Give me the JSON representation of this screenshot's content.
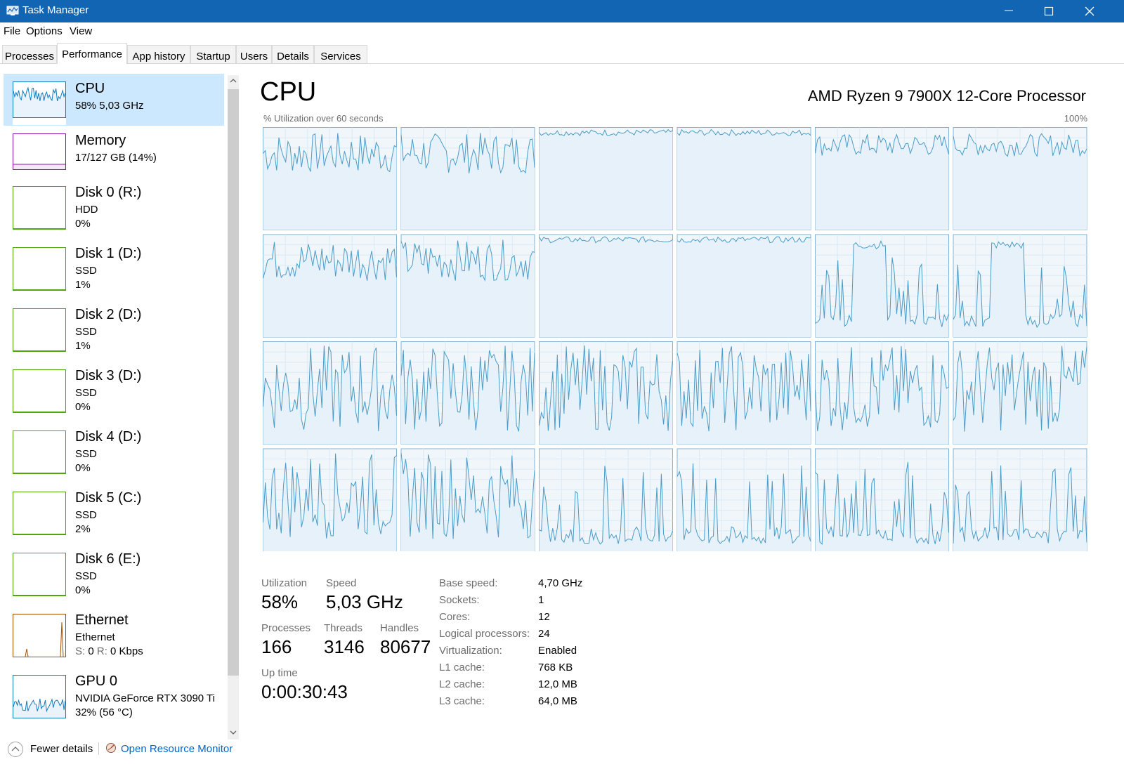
{
  "window": {
    "title": "Task Manager"
  },
  "menu": [
    "File",
    "Options",
    "View"
  ],
  "tabs": [
    "Processes",
    "Performance",
    "App history",
    "Startup",
    "Users",
    "Details",
    "Services"
  ],
  "sidebar": [
    {
      "name": "CPU",
      "l2": "58%  5,03 GHz",
      "l3": "",
      "color": "#117dbb",
      "selected": true
    },
    {
      "name": "Memory",
      "l2": "17/127 GB (14%)",
      "l3": "",
      "color": "#8b12ae"
    },
    {
      "name": "Disk 0 (R:)",
      "l2": "HDD",
      "l3": "0%",
      "color": "#4da60c"
    },
    {
      "name": "Disk 1 (D:)",
      "l2": "SSD",
      "l3": "1%",
      "color": "#4da60c"
    },
    {
      "name": "Disk 2 (D:)",
      "l2": "SSD",
      "l3": "1%",
      "color": "#4da60c"
    },
    {
      "name": "Disk 3 (D:)",
      "l2": "SSD",
      "l3": "0%",
      "color": "#4da60c"
    },
    {
      "name": "Disk 4 (D:)",
      "l2": "SSD",
      "l3": "0%",
      "color": "#4da60c"
    },
    {
      "name": "Disk 5 (C:)",
      "l2": "SSD",
      "l3": "2%",
      "color": "#4da60c"
    },
    {
      "name": "Disk 6 (E:)",
      "l2": "SSD",
      "l3": "0%",
      "color": "#4da60c"
    },
    {
      "name": "Ethernet",
      "l2": "Ethernet",
      "l3": "S: 0 R: 0 Kbps",
      "color": "#a74f01"
    },
    {
      "name": "GPU 0",
      "l2": "NVIDIA GeForce RTX 3090 Ti",
      "l3": "32% (56 °C)",
      "color": "#117dbb"
    }
  ],
  "main": {
    "title": "CPU",
    "processor": "AMD Ryzen 9 7900X 12-Core Processor",
    "graph_label": "% Utilization over 60 seconds",
    "graph_max": "100%",
    "cores": 24,
    "core_profiles": [
      "mid",
      "mid",
      "high",
      "high",
      "highmid",
      "highmid",
      "mid",
      "mid",
      "high",
      "high",
      "burst",
      "burst",
      "wild",
      "wild",
      "wild",
      "wild",
      "wild",
      "wild",
      "wild",
      "wild",
      "spike",
      "spike",
      "spike",
      "spike"
    ]
  },
  "stats": {
    "utilization_label": "Utilization",
    "utilization": "58%",
    "speed_label": "Speed",
    "speed": "5,03 GHz",
    "processes_label": "Processes",
    "processes": "166",
    "threads_label": "Threads",
    "threads": "3146",
    "handles_label": "Handles",
    "handles": "80677",
    "uptime_label": "Up time",
    "uptime": "0:00:30:43"
  },
  "specs": [
    {
      "k": "Base speed:",
      "v": "4,70 GHz"
    },
    {
      "k": "Sockets:",
      "v": "1"
    },
    {
      "k": "Cores:",
      "v": "12"
    },
    {
      "k": "Logical processors:",
      "v": "24"
    },
    {
      "k": "Virtualization:",
      "v": "Enabled"
    },
    {
      "k": "L1 cache:",
      "v": "768 KB"
    },
    {
      "k": "L2 cache:",
      "v": "12,0 MB"
    },
    {
      "k": "L3 cache:",
      "v": "64,0 MB"
    }
  ],
  "footer": {
    "fewer": "Fewer details",
    "monitor": "Open Resource Monitor"
  }
}
